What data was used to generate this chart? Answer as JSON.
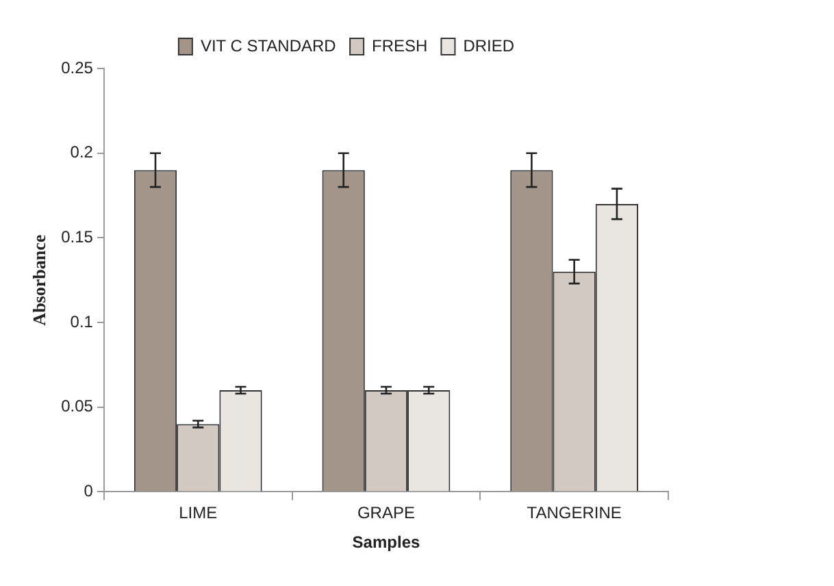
{
  "chart_data": {
    "type": "bar",
    "xlabel": "Samples",
    "ylabel": "Absorbance",
    "categories": [
      "LIME",
      "GRAPE",
      "TANGERINE"
    ],
    "series": [
      {
        "name": "VIT C STANDARD",
        "color": "#a39589",
        "values": [
          0.19,
          0.19,
          0.19
        ],
        "errors": [
          0.01,
          0.01,
          0.01
        ]
      },
      {
        "name": "FRESH",
        "color": "#d3c9c3",
        "values": [
          0.04,
          0.06,
          0.13
        ],
        "errors": [
          0.002,
          0.002,
          0.007
        ]
      },
      {
        "name": "DRIED",
        "color": "#e9e5e1",
        "values": [
          0.06,
          0.06,
          0.17
        ],
        "errors": [
          0.002,
          0.002,
          0.009
        ]
      }
    ],
    "ylim": [
      0,
      0.25
    ],
    "yticks": [
      0,
      0.05,
      0.1,
      0.15,
      0.2,
      0.25
    ],
    "grid": false,
    "legend": "top"
  }
}
